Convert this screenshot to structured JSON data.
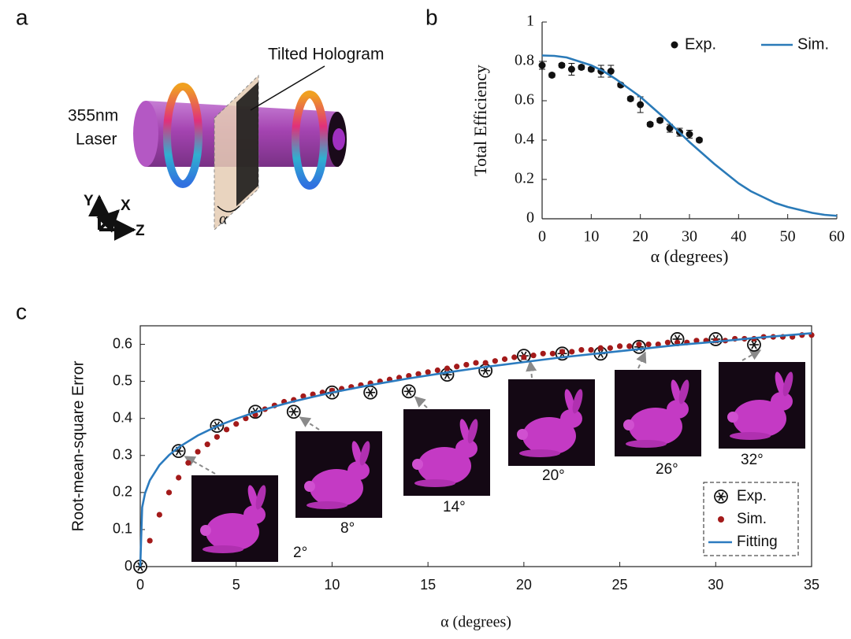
{
  "diagram": {
    "panel_label": "a",
    "hologram_label": "Tilted Hologram",
    "laser_label": [
      "355nm",
      "Laser"
    ],
    "axes": [
      "Y",
      "X",
      "Z"
    ],
    "angle": "α"
  },
  "chart_data": [
    {
      "type": "scatter",
      "panel_label": "b",
      "ylabel": "Total Efficiency",
      "xlabel": "α (degrees)",
      "xlim": [
        0,
        60
      ],
      "ylim": [
        0,
        1
      ],
      "xticks": [
        0,
        10,
        20,
        30,
        40,
        50,
        60
      ],
      "yticks": [
        0,
        0.2,
        0.4,
        0.6,
        0.8,
        1
      ],
      "legend": "upper right",
      "series": [
        {
          "name": "Exp.",
          "color": "#111111",
          "mode": "dot",
          "x": [
            0,
            2,
            4,
            6,
            8,
            10,
            12,
            14,
            16,
            18,
            20,
            22,
            24,
            26,
            28,
            30,
            32
          ],
          "values": [
            0.78,
            0.73,
            0.78,
            0.76,
            0.77,
            0.76,
            0.75,
            0.75,
            0.68,
            0.61,
            0.58,
            0.48,
            0.5,
            0.46,
            0.44,
            0.43,
            0.4
          ],
          "errors": [
            0.02,
            0.01,
            0.01,
            0.03,
            0.01,
            0.01,
            0.03,
            0.03,
            0.01,
            0.01,
            0.04,
            0.01,
            0.01,
            0.02,
            0.02,
            0.02,
            0.01
          ]
        },
        {
          "name": "Sim.",
          "color": "#2a7ab8",
          "mode": "line",
          "x": [
            0,
            2.5,
            5,
            7.5,
            10,
            12.5,
            15,
            17.5,
            20,
            22.5,
            25,
            27.5,
            30,
            32.5,
            35,
            37.5,
            40,
            42.5,
            45,
            47.5,
            50,
            52.5,
            55,
            57.5,
            60
          ],
          "values": [
            0.83,
            0.828,
            0.82,
            0.8,
            0.78,
            0.75,
            0.71,
            0.665,
            0.62,
            0.565,
            0.51,
            0.45,
            0.39,
            0.335,
            0.28,
            0.23,
            0.18,
            0.14,
            0.11,
            0.08,
            0.06,
            0.045,
            0.03,
            0.02,
            0.015
          ]
        }
      ]
    },
    {
      "type": "scatter",
      "panel_label": "c",
      "ylabel": "Root-mean-square Error",
      "xlabel": "α (degrees)",
      "xlim": [
        0,
        35
      ],
      "ylim": [
        0,
        0.65
      ],
      "xticks": [
        0,
        5,
        10,
        15,
        20,
        25,
        30,
        35
      ],
      "yticks": [
        0,
        0.1,
        0.2,
        0.3,
        0.4,
        0.5,
        0.6
      ],
      "legend": "lower right",
      "inset_labels": [
        "2°",
        "8°",
        "14°",
        "20°",
        "26°",
        "32°"
      ],
      "series": [
        {
          "name": "Exp.",
          "color": "#111111",
          "mode": "asterisk",
          "x": [
            0,
            2,
            4,
            6,
            8,
            10,
            12,
            14,
            16,
            18,
            20,
            22,
            24,
            26,
            28,
            30,
            32
          ],
          "values": [
            0,
            0.312,
            0.38,
            0.418,
            0.418,
            0.47,
            0.47,
            0.473,
            0.518,
            0.529,
            0.569,
            0.575,
            0.575,
            0.593,
            0.614,
            0.614,
            0.599
          ]
        },
        {
          "name": "Sim.",
          "color": "#a31a1a",
          "mode": "dot",
          "x": [
            0.5,
            1,
            1.5,
            2,
            2.5,
            3,
            3.5,
            4,
            4.5,
            5,
            5.5,
            6,
            6.5,
            7,
            7.5,
            8,
            8.5,
            9,
            9.5,
            10,
            10.5,
            11,
            11.5,
            12,
            12.5,
            13,
            13.5,
            14,
            14.5,
            15,
            15.5,
            16,
            16.5,
            17,
            17.5,
            18,
            18.5,
            19,
            19.5,
            20,
            20.5,
            21,
            21.5,
            22,
            22.5,
            23,
            23.5,
            24,
            24.5,
            25,
            25.5,
            26,
            26.5,
            27,
            27.5,
            28,
            28.5,
            29,
            29.5,
            30,
            30.5,
            31,
            31.5,
            32,
            32.5,
            33,
            33.5,
            34,
            34.5,
            35
          ],
          "values": [
            0.07,
            0.14,
            0.2,
            0.24,
            0.28,
            0.31,
            0.33,
            0.35,
            0.37,
            0.385,
            0.4,
            0.41,
            0.425,
            0.435,
            0.445,
            0.45,
            0.46,
            0.465,
            0.47,
            0.475,
            0.48,
            0.485,
            0.49,
            0.495,
            0.5,
            0.505,
            0.51,
            0.515,
            0.52,
            0.525,
            0.53,
            0.535,
            0.54,
            0.545,
            0.55,
            0.55,
            0.555,
            0.56,
            0.565,
            0.565,
            0.57,
            0.575,
            0.575,
            0.58,
            0.58,
            0.585,
            0.585,
            0.59,
            0.59,
            0.595,
            0.595,
            0.6,
            0.6,
            0.6,
            0.605,
            0.605,
            0.605,
            0.61,
            0.61,
            0.61,
            0.61,
            0.615,
            0.615,
            0.615,
            0.62,
            0.62,
            0.62,
            0.62,
            0.625,
            0.625
          ]
        },
        {
          "name": "Fitting",
          "color": "#2b7bbf",
          "mode": "line",
          "x": [
            0,
            0.1,
            0.25,
            0.5,
            1,
            1.5,
            2,
            3,
            4,
            5,
            6,
            7,
            8,
            9,
            10,
            12,
            14,
            16,
            18,
            20,
            22,
            24,
            26,
            28,
            30,
            32,
            35
          ],
          "values": [
            0,
            0.16,
            0.198,
            0.233,
            0.274,
            0.301,
            0.322,
            0.354,
            0.379,
            0.399,
            0.417,
            0.432,
            0.446,
            0.458,
            0.47,
            0.49,
            0.508,
            0.524,
            0.539,
            0.552,
            0.565,
            0.576,
            0.587,
            0.598,
            0.607,
            0.617,
            0.63
          ]
        }
      ]
    }
  ]
}
